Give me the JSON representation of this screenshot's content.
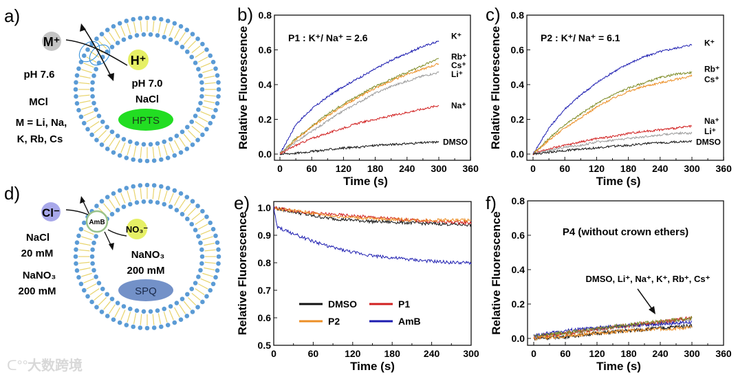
{
  "panels": {
    "a": {
      "label": "a)",
      "ion_out": "M⁺",
      "ion_in": "H⁺",
      "outside": [
        "pH 7.6",
        "MCl",
        "M = Li, Na,",
        "K, Rb, Cs"
      ],
      "inside": [
        "pH 7.0",
        "NaCl"
      ],
      "dye": "HPTS"
    },
    "d": {
      "label": "d)",
      "ion_out": "Cl⁻",
      "channel": "AmB",
      "ion_in": "NO₃⁻",
      "outside": [
        "NaCl",
        "20 mM",
        "NaNO₃",
        "200 mM"
      ],
      "inside": [
        "NaNO₃",
        "200 mM"
      ],
      "dye": "SPQ"
    }
  },
  "watermark": "大数跨境",
  "colors": {
    "K": "#1c1cb0",
    "Rb": "#7d8b25",
    "Cs": "#ec8f26",
    "Li": "#9c9c9c",
    "Na": "#d11f1f",
    "DMSO": "#111111",
    "P1": "#d11f1f",
    "P2": "#ec8f26",
    "AmB": "#1c1cb0",
    "lipid_head": "#5b9bd5",
    "lipid_tail": "#e8d36a",
    "hpts": "#22dd22",
    "spq": "#7391c8"
  },
  "chart_data": [
    {
      "id": "b",
      "panel_label": "b)",
      "type": "line",
      "annotation": "P1 :  K⁺/ Na⁺ = 2.6",
      "xlabel": "Time (s)",
      "ylabel": "Relative Fluorescence",
      "xlim": [
        -5,
        360
      ],
      "ylim": [
        -0.03,
        0.8
      ],
      "xticks": [
        0,
        60,
        120,
        180,
        240,
        300,
        360
      ],
      "yticks": [
        0.0,
        0.2,
        0.4,
        0.6,
        0.8
      ],
      "ytick_labels": [
        "0.0",
        "0.2",
        "0.4",
        "0.6",
        "0.8"
      ],
      "x": [
        0,
        30,
        60,
        90,
        120,
        150,
        180,
        210,
        240,
        270,
        300
      ],
      "series": [
        {
          "name": "K⁺",
          "key": "K",
          "values": [
            0,
            0.17,
            0.26,
            0.33,
            0.39,
            0.44,
            0.49,
            0.54,
            0.58,
            0.62,
            0.65
          ],
          "label_value": 0.68
        },
        {
          "name": "Rb⁺",
          "key": "Rb",
          "values": [
            0,
            0.09,
            0.16,
            0.23,
            0.29,
            0.34,
            0.39,
            0.43,
            0.47,
            0.51,
            0.55
          ],
          "label_value": 0.56
        },
        {
          "name": "Cs⁺",
          "key": "Cs",
          "values": [
            0,
            0.085,
            0.155,
            0.22,
            0.28,
            0.33,
            0.38,
            0.42,
            0.46,
            0.49,
            0.52
          ],
          "label_value": 0.51
        },
        {
          "name": "Li⁺",
          "key": "Li",
          "values": [
            0,
            0.07,
            0.13,
            0.19,
            0.25,
            0.3,
            0.35,
            0.39,
            0.42,
            0.45,
            0.47
          ],
          "label_value": 0.46
        },
        {
          "name": "Na⁺",
          "key": "Na",
          "values": [
            0,
            0.05,
            0.09,
            0.12,
            0.15,
            0.18,
            0.2,
            0.22,
            0.24,
            0.26,
            0.28
          ],
          "label_value": 0.28
        },
        {
          "name": "DMSO",
          "key": "DMSO",
          "values": [
            0,
            0.005,
            0.015,
            0.025,
            0.035,
            0.04,
            0.05,
            0.055,
            0.06,
            0.065,
            0.07
          ],
          "label_value": 0.07
        }
      ]
    },
    {
      "id": "c",
      "panel_label": "c)",
      "type": "line",
      "annotation": "P2 :  K⁺/ Na⁺ = 6.1",
      "xlabel": "Time (s)",
      "ylabel": "Relative Fluorescence",
      "xlim": [
        -5,
        360
      ],
      "ylim": [
        -0.03,
        0.8
      ],
      "xticks": [
        0,
        60,
        120,
        180,
        240,
        300,
        360
      ],
      "yticks": [
        0.0,
        0.2,
        0.4,
        0.6,
        0.8
      ],
      "ytick_labels": [
        "0.0",
        "0.2",
        "0.4",
        "0.6",
        "0.8"
      ],
      "x": [
        0,
        30,
        60,
        90,
        120,
        150,
        180,
        210,
        240,
        270,
        300
      ],
      "series": [
        {
          "name": "K⁺",
          "key": "K",
          "values": [
            0,
            0.15,
            0.26,
            0.34,
            0.41,
            0.47,
            0.52,
            0.56,
            0.59,
            0.61,
            0.63
          ],
          "label_value": 0.64
        },
        {
          "name": "Rb⁺",
          "key": "Rb",
          "values": [
            0,
            0.09,
            0.17,
            0.23,
            0.29,
            0.34,
            0.38,
            0.41,
            0.44,
            0.46,
            0.47
          ],
          "label_value": 0.49
        },
        {
          "name": "Cs⁺",
          "key": "Cs",
          "values": [
            0,
            0.08,
            0.15,
            0.21,
            0.27,
            0.32,
            0.36,
            0.39,
            0.41,
            0.43,
            0.45
          ],
          "label_value": 0.43
        },
        {
          "name": "Na⁺",
          "key": "Na",
          "values": [
            0,
            0.03,
            0.05,
            0.07,
            0.09,
            0.1,
            0.12,
            0.13,
            0.14,
            0.15,
            0.16
          ],
          "label_value": 0.19
        },
        {
          "name": "Li⁺",
          "key": "Li",
          "values": [
            0,
            0.02,
            0.04,
            0.05,
            0.07,
            0.08,
            0.09,
            0.1,
            0.11,
            0.12,
            0.12
          ],
          "label_value": 0.13
        },
        {
          "name": "DMSO",
          "key": "DMSO",
          "values": [
            0,
            0.01,
            0.02,
            0.03,
            0.035,
            0.045,
            0.05,
            0.06,
            0.065,
            0.07,
            0.075
          ],
          "label_value": 0.07
        }
      ]
    },
    {
      "id": "e",
      "panel_label": "e)",
      "type": "line",
      "xlabel": "Time (s)",
      "ylabel": "Relative Fluorescence",
      "xlim": [
        0,
        300
      ],
      "ylim": [
        0.5,
        1.03
      ],
      "xticks": [
        0,
        60,
        120,
        180,
        240,
        300
      ],
      "yticks": [
        0.5,
        0.6,
        0.7,
        0.8,
        0.9,
        1.0
      ],
      "ytick_labels": [
        "0.5",
        "0.6",
        "0.7",
        "0.8",
        "0.9",
        "1.0"
      ],
      "legend": "bottom-left",
      "x": [
        0,
        5,
        30,
        60,
        90,
        120,
        150,
        180,
        210,
        240,
        270,
        300
      ],
      "series": [
        {
          "name": "DMSO",
          "key": "DMSO",
          "values": [
            1.0,
            0.997,
            0.985,
            0.97,
            0.96,
            0.955,
            0.95,
            0.948,
            0.945,
            0.942,
            0.94,
            0.938
          ]
        },
        {
          "name": "P1",
          "key": "P1",
          "values": [
            1.0,
            0.998,
            0.99,
            0.98,
            0.975,
            0.97,
            0.965,
            0.96,
            0.955,
            0.95,
            0.948,
            0.945
          ]
        },
        {
          "name": "P2",
          "key": "P2",
          "values": [
            1.0,
            0.995,
            0.99,
            0.98,
            0.97,
            0.965,
            0.96,
            0.958,
            0.955,
            0.955,
            0.955,
            0.955
          ]
        },
        {
          "name": "AmB",
          "key": "AmB",
          "values": [
            1.0,
            0.93,
            0.905,
            0.878,
            0.855,
            0.838,
            0.826,
            0.818,
            0.811,
            0.805,
            0.801,
            0.799
          ]
        }
      ]
    },
    {
      "id": "f",
      "panel_label": "f)",
      "type": "line",
      "annotation": "P4 (without crown ethers)",
      "arrow_label": "DMSO, Li⁺, Na⁺, K⁺, Rb⁺, Cs⁺",
      "xlabel": "Time (s)",
      "ylabel": "Relative Fluorescence",
      "xlim": [
        -5,
        360
      ],
      "ylim": [
        -0.03,
        0.8
      ],
      "xticks": [
        0,
        60,
        120,
        180,
        240,
        300,
        360
      ],
      "yticks": [
        0.0,
        0.2,
        0.4,
        0.6,
        0.8
      ],
      "ytick_labels": [
        "0.0",
        "0.2",
        "0.4",
        "0.6",
        "0.8"
      ],
      "x": [
        0,
        60,
        120,
        180,
        240,
        300
      ],
      "series": [
        {
          "name": "DMSO",
          "key": "DMSO",
          "values": [
            0.0,
            0.01,
            0.03,
            0.045,
            0.06,
            0.075
          ]
        },
        {
          "name": "Li⁺",
          "key": "Li",
          "values": [
            0.01,
            0.03,
            0.05,
            0.07,
            0.09,
            0.11
          ]
        },
        {
          "name": "Na⁺",
          "key": "Na",
          "values": [
            0.01,
            0.03,
            0.055,
            0.075,
            0.095,
            0.12
          ]
        },
        {
          "name": "K⁺",
          "key": "K",
          "values": [
            0.015,
            0.045,
            0.06,
            0.075,
            0.085,
            0.095
          ]
        },
        {
          "name": "Rb⁺",
          "key": "Rb",
          "values": [
            0.01,
            0.035,
            0.055,
            0.08,
            0.1,
            0.12
          ]
        },
        {
          "name": "Cs⁺",
          "key": "Cs",
          "values": [
            0.0,
            0.015,
            0.03,
            0.045,
            0.055,
            0.065
          ]
        }
      ]
    }
  ]
}
